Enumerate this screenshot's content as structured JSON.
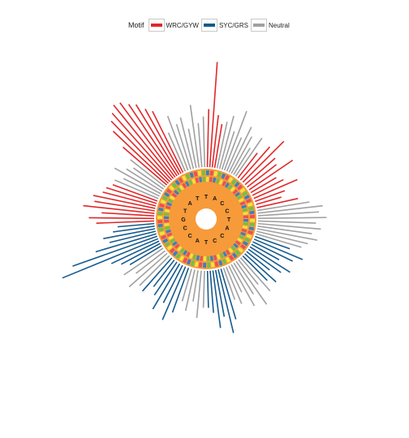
{
  "legend": {
    "title": "Motif",
    "items": [
      {
        "label": "WRC/GYW",
        "color": "#e0282a"
      },
      {
        "label": "SYC/GRS",
        "color": "#155a8c"
      },
      {
        "label": "Neutral",
        "color": "#a0a0a0"
      }
    ]
  },
  "chart_data": {
    "type": "circular-bar",
    "legend_title": "Motif",
    "categories": [
      "WRC/GYW",
      "SYC/GRS",
      "Neutral"
    ],
    "colors": {
      "WRC/GYW": "#e0282a",
      "SYC/GRS": "#155a8c",
      "Neutral": "#a0a0a0"
    },
    "nucleotide_colors": {
      "A": "#6cc24a",
      "C": "#f1e33c",
      "G": "#e8505b",
      "T": "#3b7fbf"
    },
    "center_letters": [
      "T",
      "A",
      "C",
      "C",
      "T",
      "A",
      "C",
      "C",
      "T",
      "A",
      "C",
      "C",
      "G",
      "T",
      "A",
      "T"
    ],
    "sectors": [
      {
        "from": 0.0,
        "to": 0.03,
        "motif": "WRC/GYW",
        "values": [
          0.55,
          1.0,
          0.5,
          0.42
        ]
      },
      {
        "from": 0.03,
        "to": 0.1,
        "motif": "Neutral",
        "values": [
          0.45,
          0.52,
          0.38,
          0.6,
          0.35,
          0.48,
          0.4,
          0.3,
          0.44
        ]
      },
      {
        "from": 0.1,
        "to": 0.22,
        "motif": "WRC/GYW",
        "values": [
          0.3,
          0.42,
          0.55,
          0.38,
          0.35,
          0.5,
          0.28,
          0.33,
          0.45,
          0.3,
          0.25,
          0.4
        ]
      },
      {
        "from": 0.22,
        "to": 0.3,
        "motif": "Neutral",
        "values": [
          0.5,
          0.62,
          0.58,
          0.65,
          0.55,
          0.6,
          0.52,
          0.58,
          0.5,
          0.45
        ]
      },
      {
        "from": 0.3,
        "to": 0.38,
        "motif": "SYC/GRS",
        "values": [
          0.35,
          0.5,
          0.42,
          0.3,
          0.45,
          0.38,
          0.28,
          0.4,
          0.33
        ]
      },
      {
        "from": 0.38,
        "to": 0.45,
        "motif": "Neutral",
        "values": [
          0.42,
          0.3,
          0.5,
          0.35,
          0.45,
          0.28,
          0.38,
          0.32
        ]
      },
      {
        "from": 0.45,
        "to": 0.5,
        "motif": "SYC/GRS",
        "values": [
          0.5,
          0.62,
          0.45,
          0.55,
          0.4,
          0.35
        ]
      },
      {
        "from": 0.5,
        "to": 0.55,
        "motif": "Neutral",
        "values": [
          0.35,
          0.45,
          0.3,
          0.4,
          0.32
        ]
      },
      {
        "from": 0.55,
        "to": 0.62,
        "motif": "SYC/GRS",
        "values": [
          0.45,
          0.55,
          0.4,
          0.5,
          0.38,
          0.32,
          0.42
        ]
      },
      {
        "from": 0.62,
        "to": 0.66,
        "motif": "Neutral",
        "values": [
          0.4,
          0.48,
          0.35,
          0.45
        ]
      },
      {
        "from": 0.66,
        "to": 0.74,
        "motif": "SYC/GRS",
        "values": [
          0.35,
          0.42,
          0.5,
          0.98,
          0.85,
          0.6,
          0.45,
          0.5,
          0.4,
          0.35
        ]
      },
      {
        "from": 0.74,
        "to": 0.81,
        "motif": "WRC/GYW",
        "values": [
          0.55,
          0.62,
          0.5,
          0.68,
          0.58,
          0.6,
          0.52,
          0.5,
          0.45
        ]
      },
      {
        "from": 0.81,
        "to": 0.86,
        "motif": "Neutral",
        "values": [
          0.45,
          0.38,
          0.5,
          0.4,
          0.35,
          0.42
        ]
      },
      {
        "from": 0.86,
        "to": 0.93,
        "motif": "WRC/GYW",
        "values": [
          0.55,
          0.72,
          0.8,
          0.85,
          0.9,
          0.88,
          0.82,
          0.78,
          0.7,
          0.65
        ]
      },
      {
        "from": 0.93,
        "to": 1.0,
        "motif": "Neutral",
        "values": [
          0.4,
          0.55,
          0.45,
          0.5,
          0.38,
          0.6,
          0.42,
          0.48
        ]
      }
    ]
  }
}
